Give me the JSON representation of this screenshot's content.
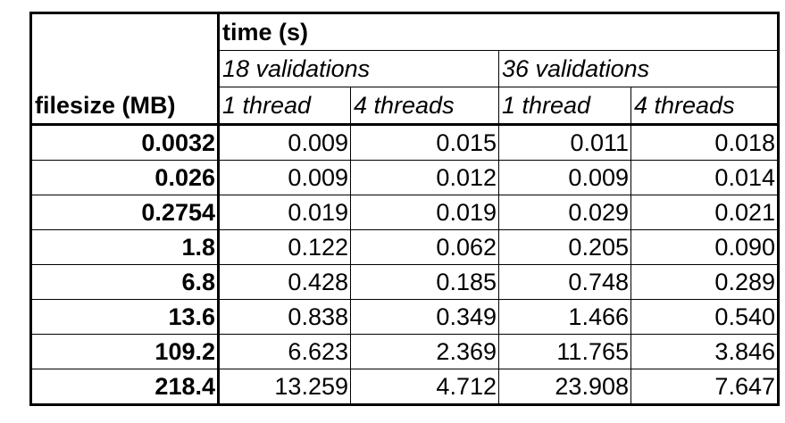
{
  "table": {
    "time_header": "time (s)",
    "group_18": "18 validations",
    "group_36": "36 validations",
    "filesize_header": "filesize (MB)",
    "col_1thread_a": "1 thread",
    "col_4threads_a": "4 threads",
    "col_1thread_b": "1 thread",
    "col_4threads_b": "4 threads",
    "rows": [
      {
        "filesize": "0.0032",
        "v18_t1": "0.009",
        "v18_t4": "0.015",
        "v36_t1": "0.011",
        "v36_t4": "0.018"
      },
      {
        "filesize": "0.026",
        "v18_t1": "0.009",
        "v18_t4": "0.012",
        "v36_t1": "0.009",
        "v36_t4": "0.014"
      },
      {
        "filesize": "0.2754",
        "v18_t1": "0.019",
        "v18_t4": "0.019",
        "v36_t1": "0.029",
        "v36_t4": "0.021"
      },
      {
        "filesize": "1.8",
        "v18_t1": "0.122",
        "v18_t4": "0.062",
        "v36_t1": "0.205",
        "v36_t4": "0.090"
      },
      {
        "filesize": "6.8",
        "v18_t1": "0.428",
        "v18_t4": "0.185",
        "v36_t1": "0.748",
        "v36_t4": "0.289"
      },
      {
        "filesize": "13.6",
        "v18_t1": "0.838",
        "v18_t4": "0.349",
        "v36_t1": "1.466",
        "v36_t4": "0.540"
      },
      {
        "filesize": "109.2",
        "v18_t1": "6.623",
        "v18_t4": "2.369",
        "v36_t1": "11.765",
        "v36_t4": "3.846"
      },
      {
        "filesize": "218.4",
        "v18_t1": "13.259",
        "v18_t4": "4.712",
        "v36_t1": "23.908",
        "v36_t4": "7.647"
      }
    ]
  }
}
